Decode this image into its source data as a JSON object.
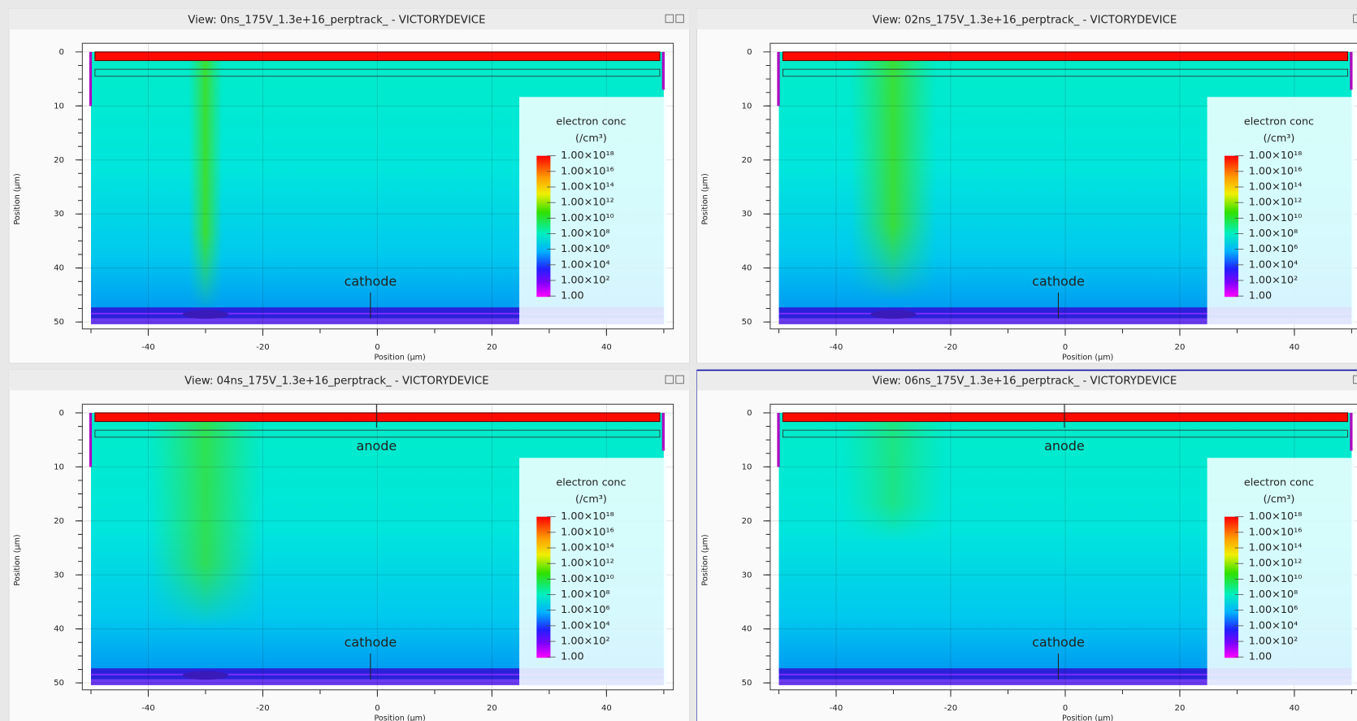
{
  "panels": [
    {
      "title": "View: 0ns_175V_1.3e+16_perptrack_ - VICTORYDEVICE",
      "y_label": "Position (µm)",
      "x_label": "Position (µm)",
      "x_ticks": [
        -40,
        -20,
        0,
        20,
        40
      ],
      "y_ticks": [
        0,
        10,
        20,
        30,
        40,
        50
      ],
      "legend": {
        "title": "electron conc",
        "unit": "(/cm³)",
        "labels": [
          "1.00×10¹⁸",
          "1.00×10¹⁶",
          "1.00×10¹⁴",
          "1.00×10¹²",
          "1.00×10¹⁰",
          "1.00×10⁸",
          "1.00×10⁶",
          "1.00×10⁴",
          "1.00×10²",
          "1.00"
        ]
      },
      "annotations": [
        "cathode"
      ]
    },
    {
      "title": "View: 02ns_175V_1.3e+16_perptrack_ - VICTORYDEVICE",
      "y_label": "Position (µm)",
      "x_label": "Position (µm)",
      "x_ticks": [
        -40,
        -20,
        0,
        20,
        40
      ],
      "y_ticks": [
        0,
        10,
        20,
        30,
        40,
        50
      ],
      "legend": {
        "title": "electron conc",
        "unit": "(/cm³)",
        "labels": [
          "1.00×10¹⁸",
          "1.00×10¹⁶",
          "1.00×10¹⁴",
          "1.00×10¹²",
          "1.00×10¹⁰",
          "1.00×10⁸",
          "1.00×10⁶",
          "1.00×10⁴",
          "1.00×10²",
          "1.00"
        ]
      },
      "annotations": [
        "cathode"
      ]
    },
    {
      "title": "View: 04ns_175V_1.3e+16_perptrack_ - VICTORYDEVICE",
      "y_label": "Position (µm)",
      "x_label": "Position (µm)",
      "x_ticks": [
        -40,
        -20,
        0,
        20,
        40
      ],
      "y_ticks": [
        0,
        10,
        20,
        30,
        40,
        50
      ],
      "legend": {
        "title": "electron conc",
        "unit": "(/cm³)",
        "labels": [
          "1.00×10¹⁸",
          "1.00×10¹⁶",
          "1.00×10¹⁴",
          "1.00×10¹²",
          "1.00×10¹⁰",
          "1.00×10⁸",
          "1.00×10⁶",
          "1.00×10⁴",
          "1.00×10²",
          "1.00"
        ]
      },
      "annotations": [
        "cathode",
        "anode"
      ]
    },
    {
      "title": "View: 06ns_175V_1.3e+16_perptrack_ - VICTORYDEVICE",
      "y_label": "Position (µm)",
      "x_label": "Position (µm)",
      "x_ticks": [
        -40,
        -20,
        0,
        20,
        40
      ],
      "y_ticks": [
        0,
        10,
        20,
        30,
        40,
        50
      ],
      "legend": {
        "title": "electron conc",
        "unit": "(/cm³)",
        "labels": [
          "1.00×10¹⁸",
          "1.00×10¹⁶",
          "1.00×10¹⁴",
          "1.00×10¹²",
          "1.00×10¹⁰",
          "1.00×10⁸",
          "1.00×10⁶",
          "1.00×10⁴",
          "1.00×10²",
          "1.00"
        ]
      },
      "annotations": [
        "cathode",
        "anode"
      ]
    }
  ]
}
